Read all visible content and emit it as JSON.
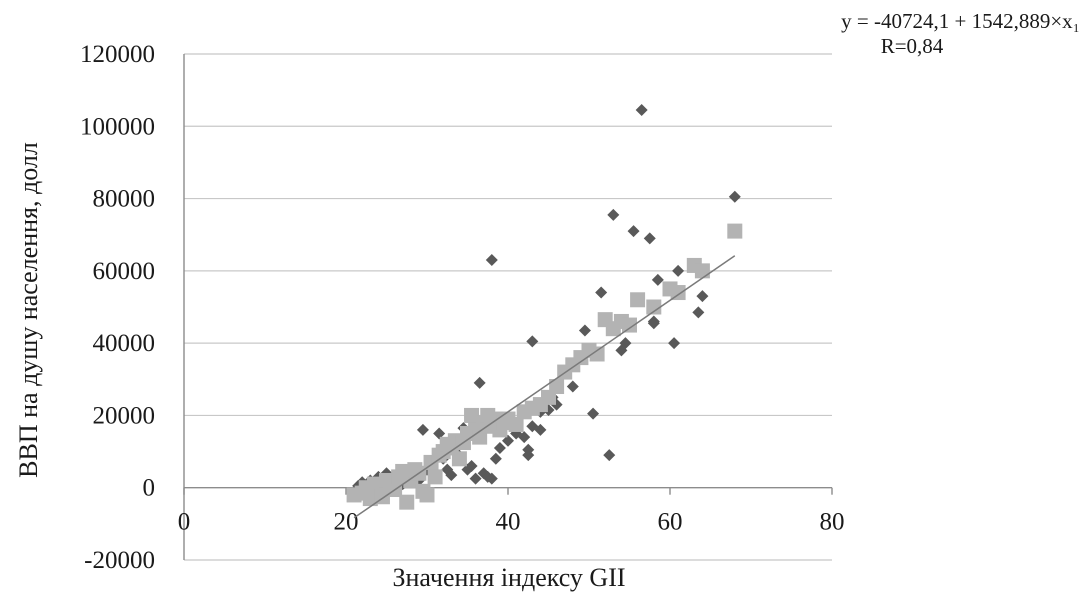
{
  "chart_data": {
    "type": "scatter",
    "xlabel": "Значення індексу GII",
    "ylabel": "ВВП на душу населення, долл",
    "xlim": [
      0,
      80
    ],
    "ylim": [
      -20000,
      120000
    ],
    "x_ticks": [
      "0",
      "20",
      "40",
      "60",
      "80"
    ],
    "y_ticks": [
      "-20000",
      "0",
      "20000",
      "40000",
      "60000",
      "80000",
      "100000",
      "120000"
    ],
    "grid": "horizontal",
    "equation": "y = -40724,1 + 1542,889×x₁",
    "r_label": "R=0,84",
    "trendline": {
      "intercept": -40724.1,
      "slope": 1542.889,
      "x_range": [
        21,
        68
      ]
    },
    "series": [
      {
        "marker": "diamond",
        "color": "#595959",
        "points": [
          [
            21.5,
            500
          ],
          [
            22,
            1500
          ],
          [
            23,
            2000
          ],
          [
            24,
            3000
          ],
          [
            25,
            4000
          ],
          [
            26,
            2500
          ],
          [
            27,
            1000
          ],
          [
            27.5,
            3500
          ],
          [
            28,
            4500
          ],
          [
            29,
            2000
          ],
          [
            29.5,
            16000
          ],
          [
            30,
            5000
          ],
          [
            31,
            3000
          ],
          [
            31.5,
            15000
          ],
          [
            32,
            8000
          ],
          [
            32.5,
            5000
          ],
          [
            33,
            3500
          ],
          [
            33.5,
            10000
          ],
          [
            34,
            12000
          ],
          [
            34.5,
            16500
          ],
          [
            35,
            5000
          ],
          [
            35.5,
            6000
          ],
          [
            36,
            2500
          ],
          [
            36.5,
            29000
          ],
          [
            37,
            4000
          ],
          [
            37.5,
            3000
          ],
          [
            38,
            63000
          ],
          [
            38,
            2500
          ],
          [
            38.5,
            8000
          ],
          [
            39,
            11000
          ],
          [
            40,
            13000
          ],
          [
            40.5,
            17000
          ],
          [
            41,
            15000
          ],
          [
            42,
            14000
          ],
          [
            42.5,
            9000
          ],
          [
            42.5,
            10500
          ],
          [
            43,
            40500
          ],
          [
            43,
            17000
          ],
          [
            44,
            16000
          ],
          [
            44,
            21000
          ],
          [
            45,
            21500
          ],
          [
            45.5,
            25000
          ],
          [
            46,
            23000
          ],
          [
            48,
            28000
          ],
          [
            49.5,
            43500
          ],
          [
            50.5,
            20500
          ],
          [
            51.5,
            54000
          ],
          [
            52.5,
            9000
          ],
          [
            53,
            75500
          ],
          [
            54,
            38000
          ],
          [
            54.5,
            40000
          ],
          [
            55.5,
            71000
          ],
          [
            56.5,
            104500
          ],
          [
            57.5,
            69000
          ],
          [
            58,
            45500
          ],
          [
            58,
            46000
          ],
          [
            58.5,
            57500
          ],
          [
            60.5,
            40000
          ],
          [
            61,
            60000
          ],
          [
            63.5,
            48500
          ],
          [
            64,
            53000
          ],
          [
            68,
            80500
          ]
        ]
      },
      {
        "marker": "square",
        "color": "#b3b3b3",
        "points": [
          [
            21,
            -2000
          ],
          [
            22,
            -1500
          ],
          [
            22.5,
            0
          ],
          [
            23,
            -3000
          ],
          [
            23.5,
            1000
          ],
          [
            24,
            500
          ],
          [
            24.5,
            -2500
          ],
          [
            25,
            2000
          ],
          [
            25.5,
            1000
          ],
          [
            26,
            -500
          ],
          [
            26.5,
            3000
          ],
          [
            27,
            4500
          ],
          [
            27.5,
            -4000
          ],
          [
            28,
            2000
          ],
          [
            28.5,
            5000
          ],
          [
            29,
            4000
          ],
          [
            29.5,
            -1000
          ],
          [
            30,
            -2000
          ],
          [
            30.5,
            7000
          ],
          [
            31,
            3000
          ],
          [
            31.5,
            9000
          ],
          [
            32,
            10000
          ],
          [
            32.5,
            12000
          ],
          [
            33,
            11000
          ],
          [
            33.5,
            13000
          ],
          [
            34,
            8000
          ],
          [
            34.5,
            12500
          ],
          [
            35,
            15000
          ],
          [
            35.5,
            20000
          ],
          [
            36,
            16000
          ],
          [
            36.5,
            14000
          ],
          [
            37,
            18000
          ],
          [
            37.5,
            20000
          ],
          [
            38,
            17000
          ],
          [
            38.5,
            19000
          ],
          [
            39,
            16000
          ],
          [
            39.5,
            18000
          ],
          [
            40,
            19000
          ],
          [
            41,
            17500
          ],
          [
            42,
            21000
          ],
          [
            43,
            22000
          ],
          [
            44,
            23000
          ],
          [
            45,
            25000
          ],
          [
            46,
            28000
          ],
          [
            47,
            32000
          ],
          [
            48,
            34000
          ],
          [
            49,
            36000
          ],
          [
            50,
            38000
          ],
          [
            51,
            37000
          ],
          [
            52,
            46500
          ],
          [
            53,
            44000
          ],
          [
            54,
            46000
          ],
          [
            55,
            45000
          ],
          [
            56,
            52000
          ],
          [
            58,
            50000
          ],
          [
            60,
            55000
          ],
          [
            61,
            54000
          ],
          [
            63,
            61500
          ],
          [
            64,
            60000
          ],
          [
            68,
            71000
          ]
        ]
      }
    ]
  }
}
